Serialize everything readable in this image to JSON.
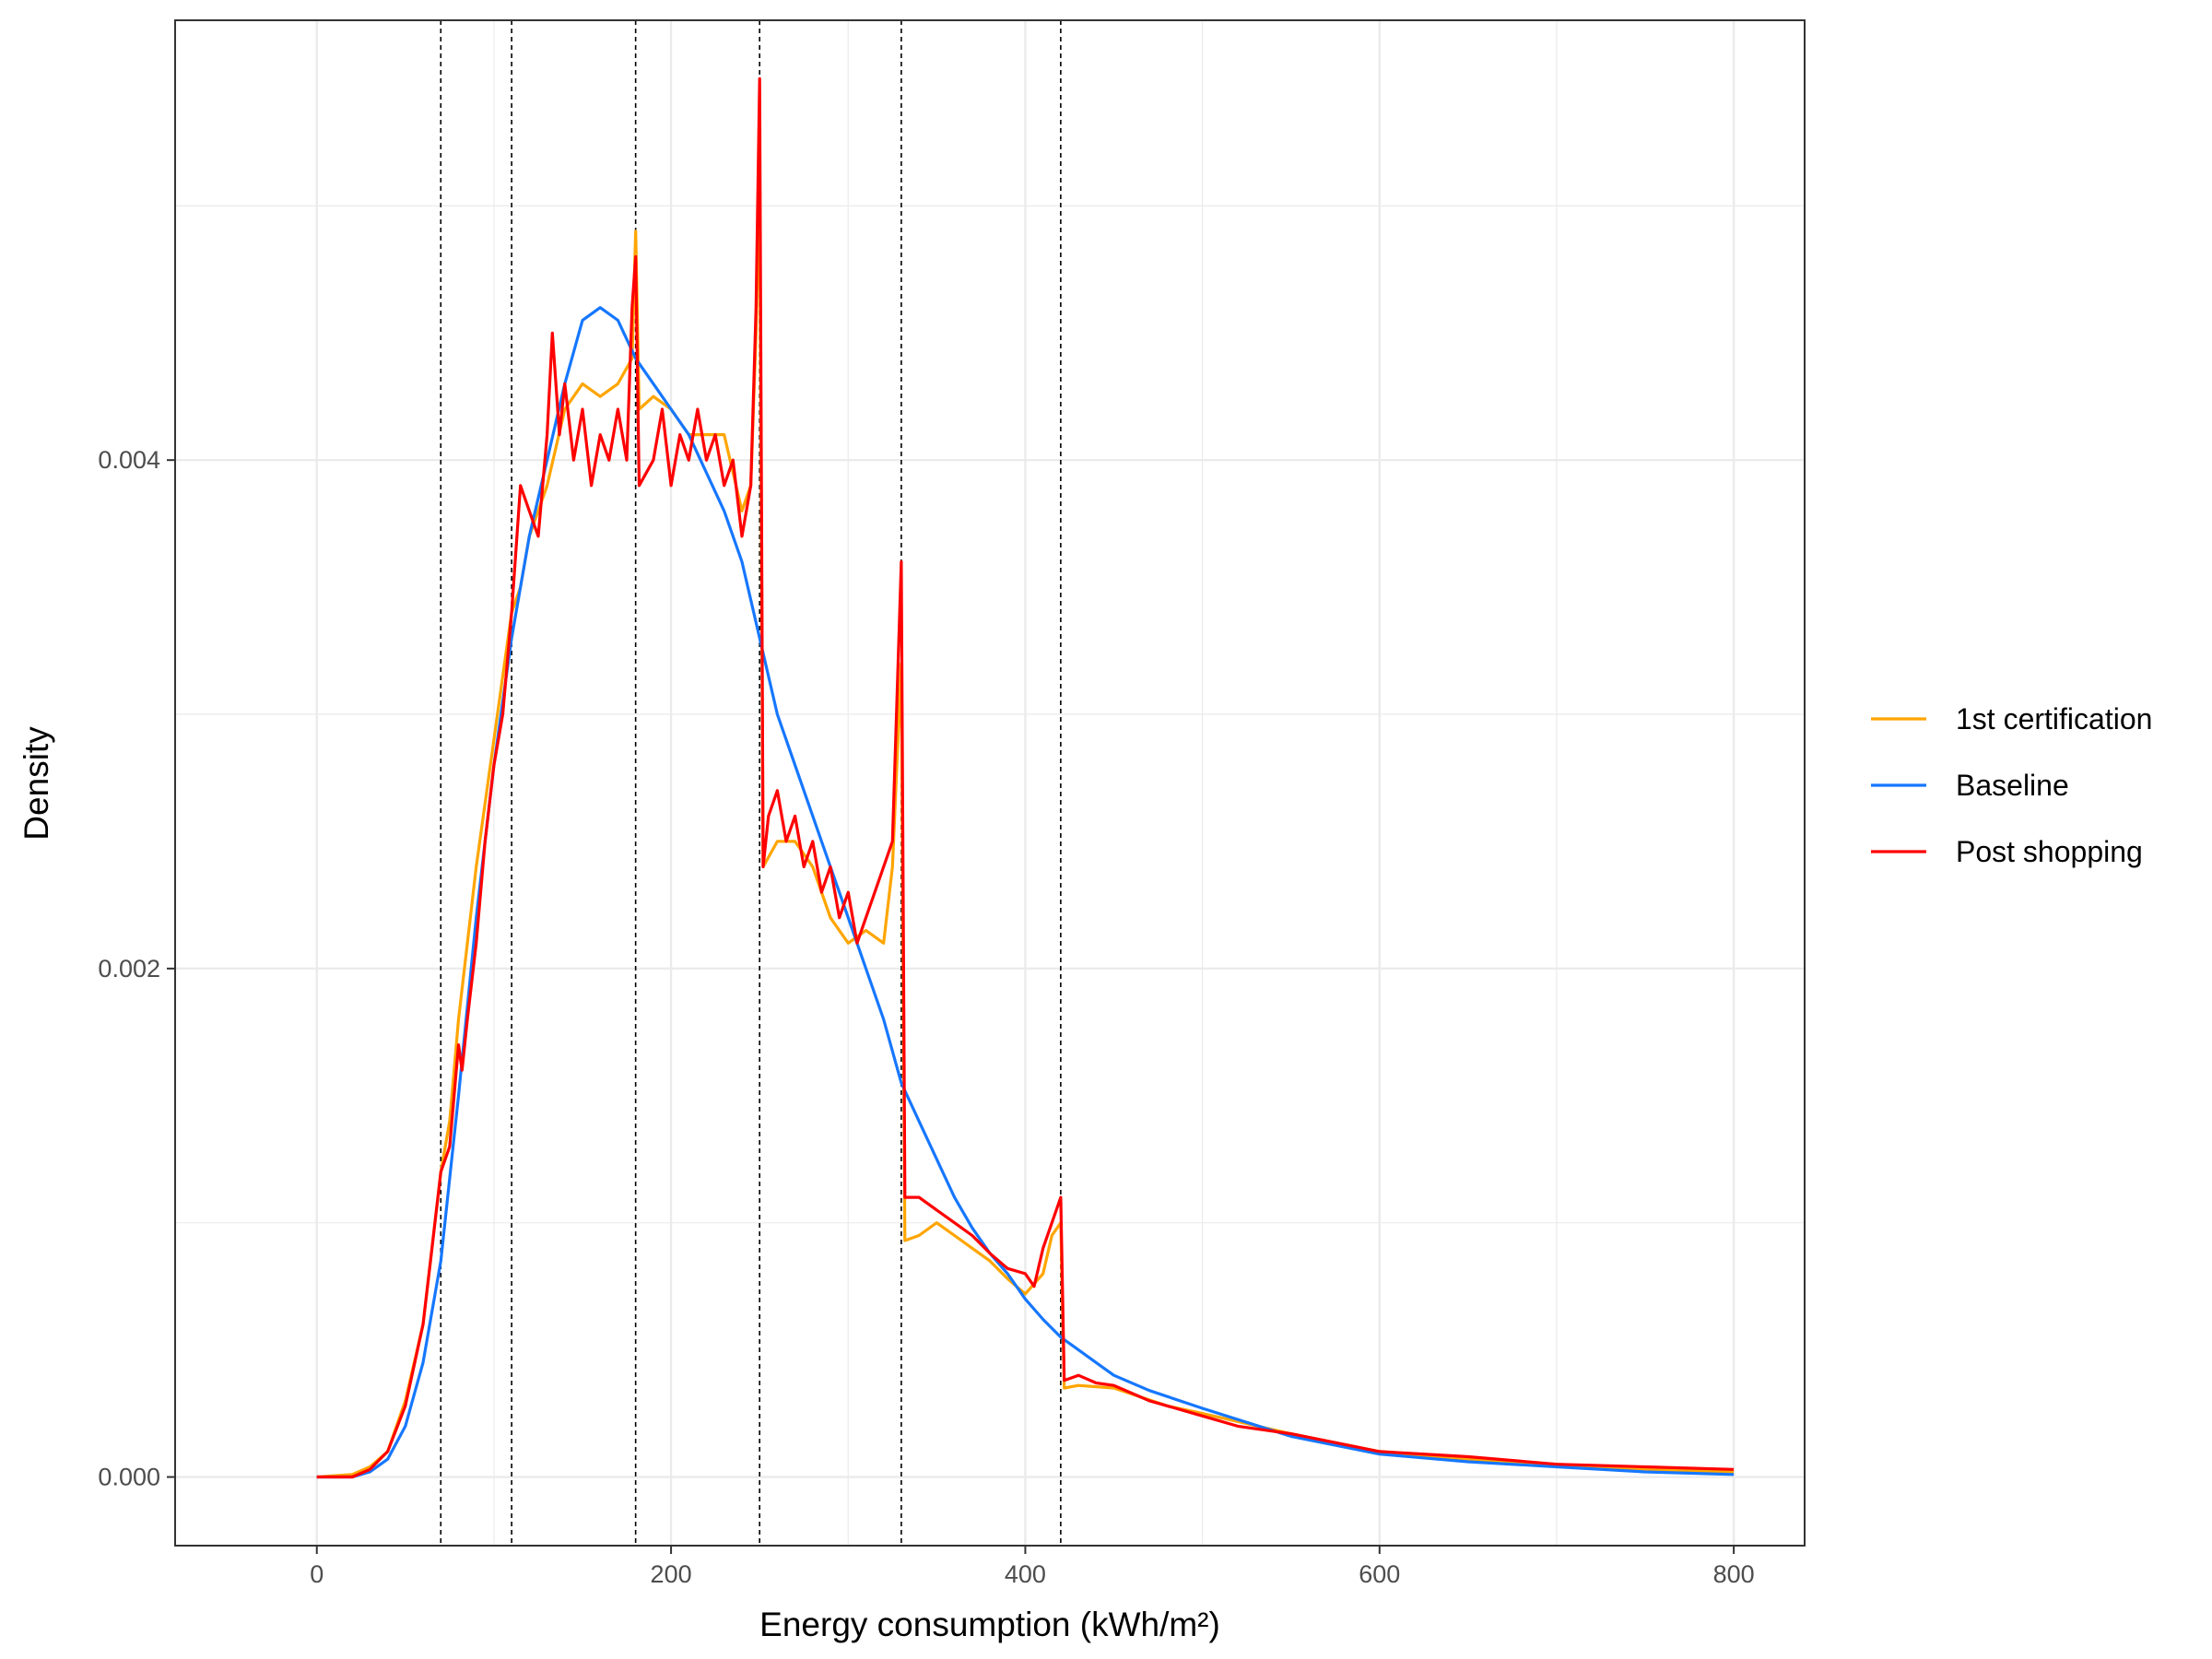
{
  "chart_data": {
    "type": "line",
    "title": "",
    "xlabel": "Energy consumption (kWh/m²)",
    "ylabel": "Density",
    "xlim": [
      -80,
      840
    ],
    "ylim": [
      -0.00027,
      0.00573
    ],
    "x_ticks": [
      0,
      200,
      400,
      600,
      800
    ],
    "x_tick_labels": [
      "0",
      "200",
      "400",
      "600",
      "800"
    ],
    "y_ticks": [
      0,
      0.002,
      0.004
    ],
    "y_tick_labels": [
      "0.000",
      "0.002",
      "0.004"
    ],
    "grid": true,
    "legend_position": "right",
    "vlines": [
      70,
      110,
      180,
      250,
      330,
      420
    ],
    "vline_style": "dashed",
    "series": [
      {
        "name": "1st certification",
        "color": "#FFA500",
        "points": [
          [
            0,
            0
          ],
          [
            20,
            1e-05
          ],
          [
            30,
            4e-05
          ],
          [
            40,
            0.0001
          ],
          [
            50,
            0.0003
          ],
          [
            60,
            0.0006
          ],
          [
            70,
            0.0012
          ],
          [
            75,
            0.0014
          ],
          [
            80,
            0.0018
          ],
          [
            90,
            0.0024
          ],
          [
            100,
            0.0029
          ],
          [
            110,
            0.0034
          ],
          [
            115,
            0.0035
          ],
          [
            120,
            0.0037
          ],
          [
            130,
            0.0039
          ],
          [
            140,
            0.0042
          ],
          [
            150,
            0.0043
          ],
          [
            160,
            0.00425
          ],
          [
            170,
            0.0043
          ],
          [
            178,
            0.0044
          ],
          [
            180,
            0.0049
          ],
          [
            182,
            0.0042
          ],
          [
            190,
            0.00425
          ],
          [
            200,
            0.0042
          ],
          [
            210,
            0.0041
          ],
          [
            220,
            0.0041
          ],
          [
            230,
            0.0041
          ],
          [
            240,
            0.0038
          ],
          [
            245,
            0.0039
          ],
          [
            248,
            0.0045
          ],
          [
            250,
            0.0051
          ],
          [
            252,
            0.0024
          ],
          [
            260,
            0.0025
          ],
          [
            270,
            0.0025
          ],
          [
            280,
            0.0024
          ],
          [
            290,
            0.0022
          ],
          [
            300,
            0.0021
          ],
          [
            310,
            0.00215
          ],
          [
            320,
            0.0021
          ],
          [
            325,
            0.0024
          ],
          [
            330,
            0.0032
          ],
          [
            332,
            0.00093
          ],
          [
            340,
            0.00095
          ],
          [
            350,
            0.001
          ],
          [
            360,
            0.00095
          ],
          [
            370,
            0.0009
          ],
          [
            380,
            0.00085
          ],
          [
            390,
            0.00078
          ],
          [
            400,
            0.00072
          ],
          [
            410,
            0.0008
          ],
          [
            415,
            0.00095
          ],
          [
            420,
            0.001
          ],
          [
            422,
            0.00035
          ],
          [
            430,
            0.00036
          ],
          [
            450,
            0.00035
          ],
          [
            480,
            0.00028
          ],
          [
            500,
            0.00025
          ],
          [
            550,
            0.00017
          ],
          [
            600,
            0.0001
          ],
          [
            650,
            7e-05
          ],
          [
            700,
            5e-05
          ],
          [
            750,
            3e-05
          ],
          [
            800,
            2e-05
          ]
        ]
      },
      {
        "name": "Baseline",
        "color": "#1677FF",
        "points": [
          [
            0,
            0
          ],
          [
            20,
            0
          ],
          [
            30,
            2e-05
          ],
          [
            40,
            7e-05
          ],
          [
            50,
            0.0002
          ],
          [
            60,
            0.00045
          ],
          [
            70,
            0.00085
          ],
          [
            80,
            0.0015
          ],
          [
            90,
            0.0022
          ],
          [
            100,
            0.0028
          ],
          [
            110,
            0.0033
          ],
          [
            120,
            0.0037
          ],
          [
            130,
            0.004
          ],
          [
            140,
            0.0043
          ],
          [
            150,
            0.00455
          ],
          [
            160,
            0.0046
          ],
          [
            170,
            0.00455
          ],
          [
            180,
            0.0044
          ],
          [
            190,
            0.0043
          ],
          [
            200,
            0.0042
          ],
          [
            210,
            0.0041
          ],
          [
            220,
            0.00395
          ],
          [
            230,
            0.0038
          ],
          [
            240,
            0.0036
          ],
          [
            250,
            0.0033
          ],
          [
            260,
            0.003
          ],
          [
            270,
            0.0028
          ],
          [
            280,
            0.0026
          ],
          [
            290,
            0.0024
          ],
          [
            300,
            0.0022
          ],
          [
            310,
            0.002
          ],
          [
            320,
            0.0018
          ],
          [
            330,
            0.00155
          ],
          [
            340,
            0.0014
          ],
          [
            350,
            0.00125
          ],
          [
            360,
            0.0011
          ],
          [
            370,
            0.00098
          ],
          [
            380,
            0.00088
          ],
          [
            390,
            0.0008
          ],
          [
            400,
            0.0007
          ],
          [
            410,
            0.00062
          ],
          [
            420,
            0.00055
          ],
          [
            430,
            0.0005
          ],
          [
            440,
            0.00045
          ],
          [
            450,
            0.0004
          ],
          [
            470,
            0.00034
          ],
          [
            500,
            0.00027
          ],
          [
            550,
            0.00016
          ],
          [
            600,
            9e-05
          ],
          [
            650,
            6e-05
          ],
          [
            700,
            4e-05
          ],
          [
            750,
            2e-05
          ],
          [
            800,
            1e-05
          ]
        ]
      },
      {
        "name": "Post shopping",
        "color": "#FF0000",
        "points": [
          [
            0,
            0
          ],
          [
            20,
            0
          ],
          [
            30,
            3e-05
          ],
          [
            40,
            0.0001
          ],
          [
            50,
            0.00028
          ],
          [
            60,
            0.0006
          ],
          [
            65,
            0.0009
          ],
          [
            70,
            0.0012
          ],
          [
            75,
            0.0013
          ],
          [
            80,
            0.0017
          ],
          [
            82,
            0.0016
          ],
          [
            85,
            0.0018
          ],
          [
            90,
            0.0021
          ],
          [
            95,
            0.0025
          ],
          [
            100,
            0.0028
          ],
          [
            105,
            0.003
          ],
          [
            110,
            0.0034
          ],
          [
            115,
            0.0039
          ],
          [
            120,
            0.0038
          ],
          [
            125,
            0.0037
          ],
          [
            130,
            0.0041
          ],
          [
            133,
            0.0045
          ],
          [
            137,
            0.0041
          ],
          [
            140,
            0.0043
          ],
          [
            145,
            0.004
          ],
          [
            150,
            0.0042
          ],
          [
            155,
            0.0039
          ],
          [
            160,
            0.0041
          ],
          [
            165,
            0.004
          ],
          [
            170,
            0.0042
          ],
          [
            175,
            0.004
          ],
          [
            178,
            0.0046
          ],
          [
            180,
            0.0048
          ],
          [
            182,
            0.0039
          ],
          [
            190,
            0.004
          ],
          [
            195,
            0.0042
          ],
          [
            200,
            0.0039
          ],
          [
            205,
            0.0041
          ],
          [
            210,
            0.004
          ],
          [
            215,
            0.0042
          ],
          [
            220,
            0.004
          ],
          [
            225,
            0.0041
          ],
          [
            230,
            0.0039
          ],
          [
            235,
            0.004
          ],
          [
            240,
            0.0037
          ],
          [
            245,
            0.0039
          ],
          [
            248,
            0.0046
          ],
          [
            250,
            0.0055
          ],
          [
            252,
            0.0024
          ],
          [
            255,
            0.0026
          ],
          [
            260,
            0.0027
          ],
          [
            265,
            0.0025
          ],
          [
            270,
            0.0026
          ],
          [
            275,
            0.0024
          ],
          [
            280,
            0.0025
          ],
          [
            285,
            0.0023
          ],
          [
            290,
            0.0024
          ],
          [
            295,
            0.0022
          ],
          [
            300,
            0.0023
          ],
          [
            305,
            0.0021
          ],
          [
            310,
            0.0022
          ],
          [
            315,
            0.0023
          ],
          [
            320,
            0.0024
          ],
          [
            325,
            0.0025
          ],
          [
            330,
            0.0036
          ],
          [
            332,
            0.0011
          ],
          [
            340,
            0.0011
          ],
          [
            350,
            0.00105
          ],
          [
            360,
            0.001
          ],
          [
            370,
            0.00095
          ],
          [
            380,
            0.00088
          ],
          [
            390,
            0.00082
          ],
          [
            400,
            0.0008
          ],
          [
            405,
            0.00075
          ],
          [
            410,
            0.0009
          ],
          [
            415,
            0.001
          ],
          [
            420,
            0.0011
          ],
          [
            422,
            0.00038
          ],
          [
            430,
            0.0004
          ],
          [
            440,
            0.00037
          ],
          [
            450,
            0.00036
          ],
          [
            460,
            0.00033
          ],
          [
            470,
            0.0003
          ],
          [
            480,
            0.00028
          ],
          [
            500,
            0.00024
          ],
          [
            520,
            0.0002
          ],
          [
            550,
            0.00017
          ],
          [
            600,
            0.0001
          ],
          [
            650,
            8e-05
          ],
          [
            700,
            5e-05
          ],
          [
            750,
            4e-05
          ],
          [
            800,
            3e-05
          ]
        ]
      }
    ]
  }
}
